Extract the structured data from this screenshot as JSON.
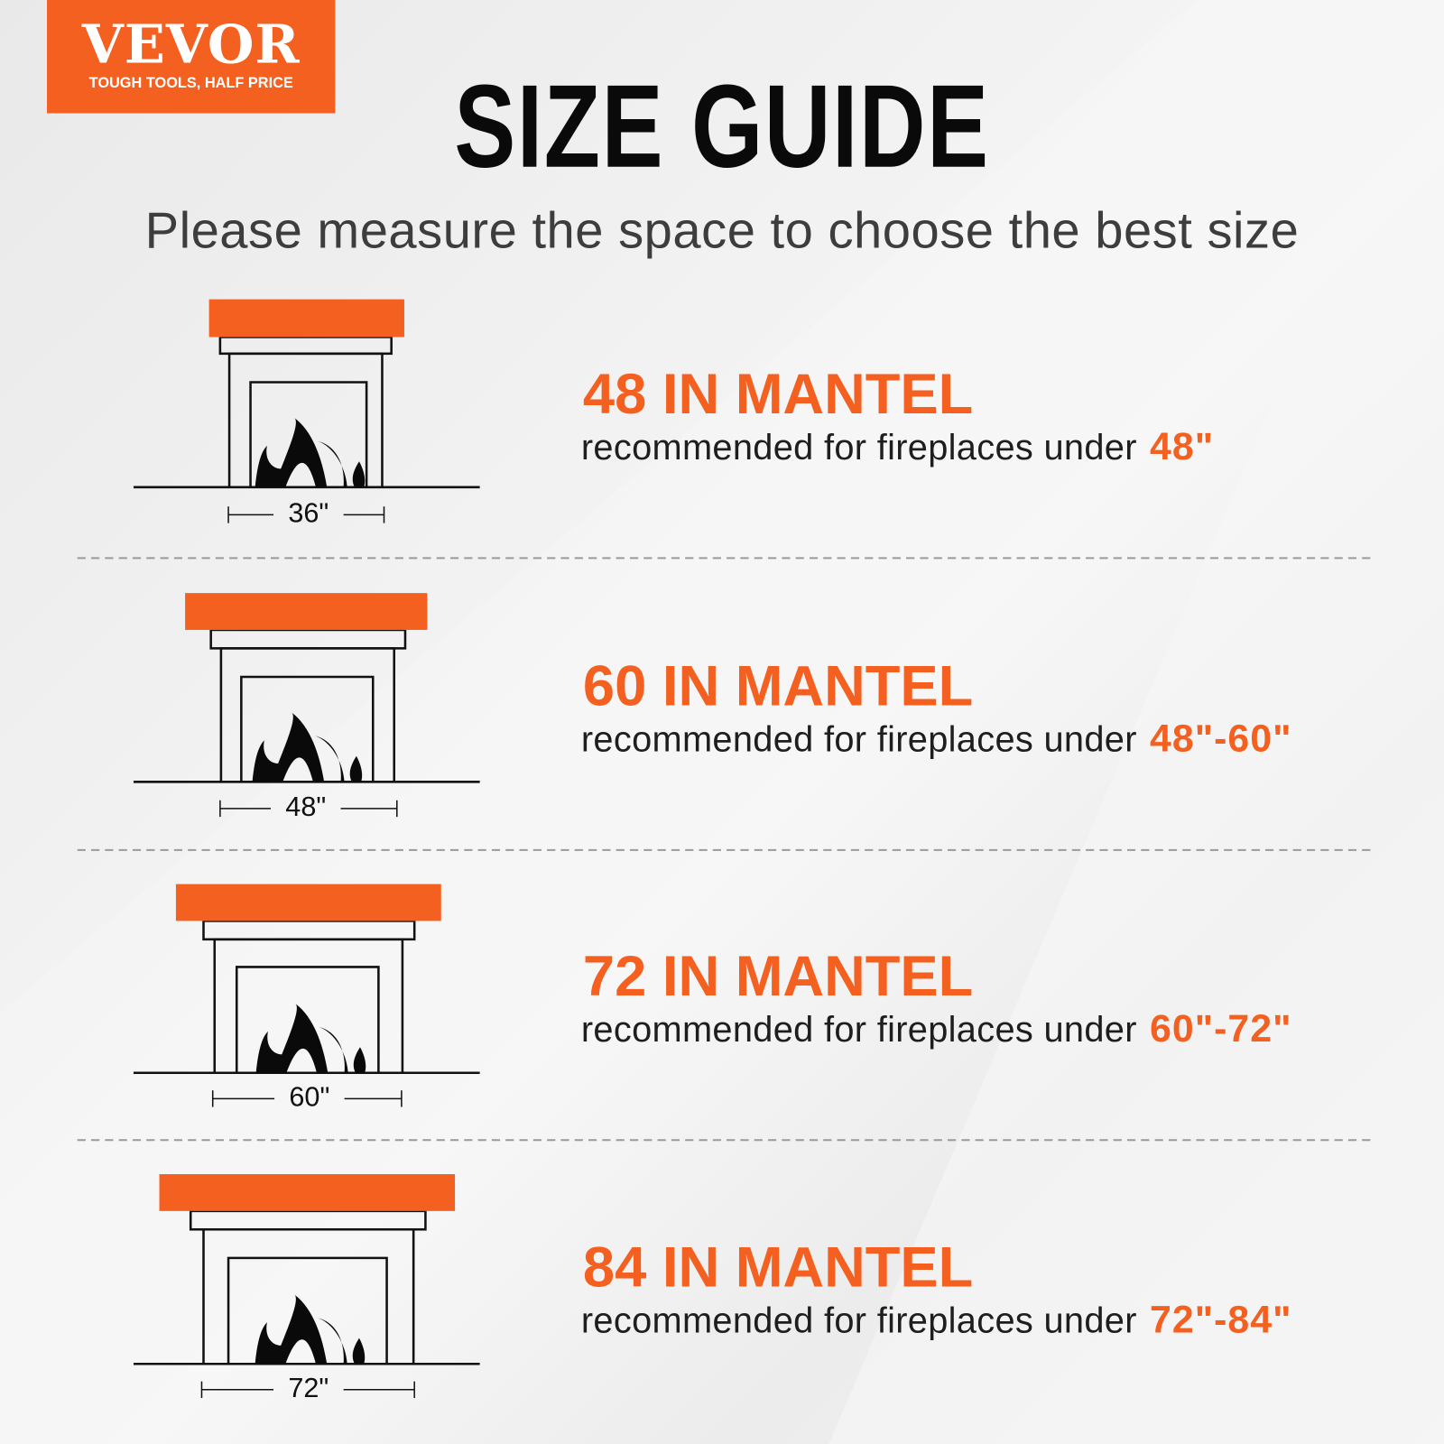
{
  "brand": {
    "name": "VEVOR",
    "tagline": "TOUGH TOOLS, HALF PRICE",
    "color": "#f46020"
  },
  "title": "SIZE GUIDE",
  "subtitle": "Please measure the space to choose the best size",
  "sizes": [
    {
      "heading": "48 IN MANTEL",
      "text": "recommended for fireplaces under",
      "range": "48\"",
      "fireplace_width": "36\""
    },
    {
      "heading": "60 IN MANTEL",
      "text": "recommended for fireplaces under",
      "range": "48\"-60\"",
      "fireplace_width": "48\""
    },
    {
      "heading": "72 IN MANTEL",
      "text": "recommended for fireplaces under",
      "range": "60\"-72\"",
      "fireplace_width": "60\""
    },
    {
      "heading": "84 IN MANTEL",
      "text": "recommended for fireplaces under",
      "range": "72\"-84\"",
      "fireplace_width": "72\""
    }
  ]
}
